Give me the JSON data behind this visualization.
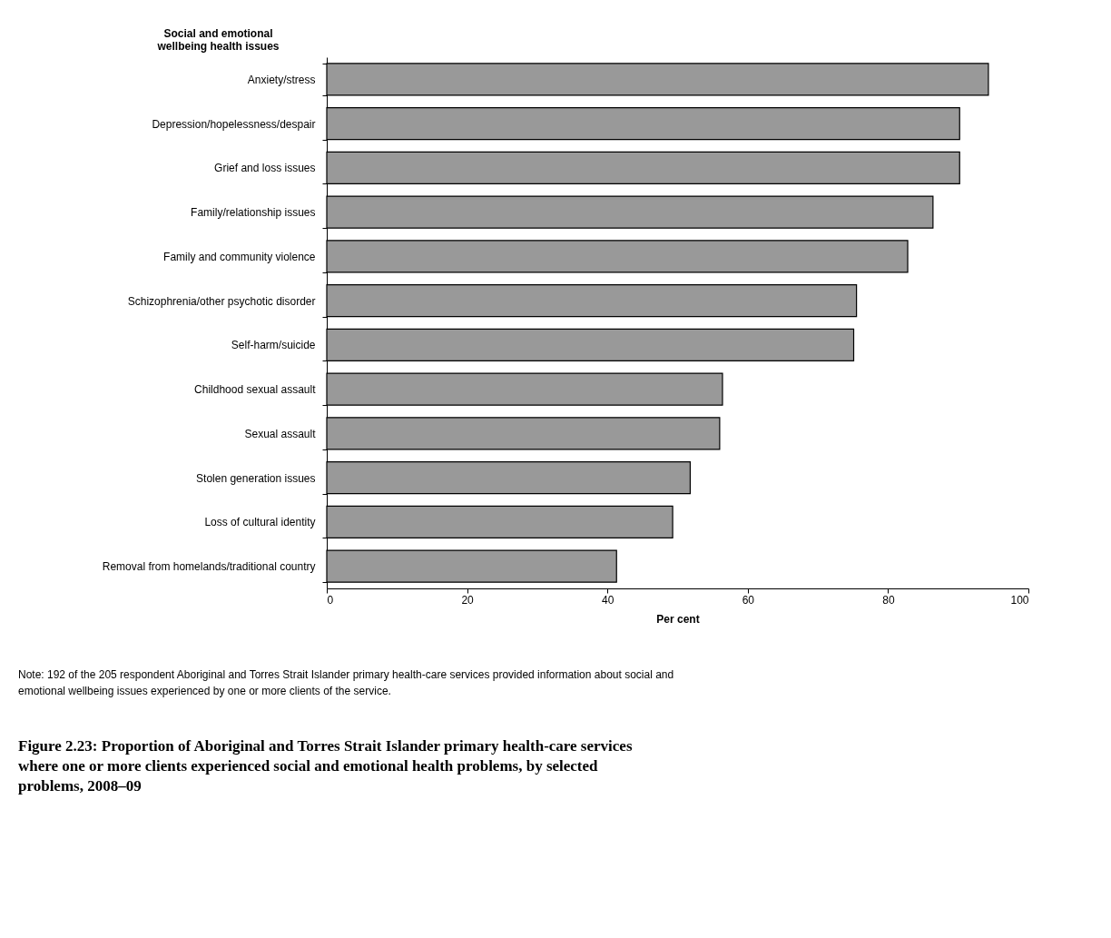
{
  "chart_data": {
    "type": "bar",
    "orientation": "horizontal",
    "title": "Figure 2.23: Proportion of Aboriginal and Torres Strait Islander primary health-care services where one or more clients experienced social and emotional health problems, by selected problems, 2008–09",
    "ylabel": "Social and emotional wellbeing health issues",
    "xlabel": "Per cent",
    "categories": [
      "Anxiety/stress",
      "Depression/hopelessness/despair",
      "Grief and loss issues",
      "Family/relationship issues",
      "Family and community violence",
      "Schizophrenia/other psychotic disorder",
      "Self-harm/suicide",
      "Childhood sexual assault",
      "Sexual assault",
      "Stolen generation issues",
      "Loss of cultural identity",
      "Removal from homelands/traditional country"
    ],
    "values": [
      94.3,
      90.2,
      90.2,
      86.4,
      82.8,
      75.5,
      75.1,
      56.4,
      56.0,
      51.8,
      49.3,
      41.3
    ],
    "color": "#999999",
    "xlim": [
      0,
      100
    ],
    "xticks": [
      0,
      20,
      40,
      60,
      80,
      100
    ],
    "grid": false,
    "annotations": [
      "Note: 192 of the 205 respondent Aboriginal and Torres Strait Islander primary health-care services provided information about social and emotional wellbeing issues experienced by one or more clients of the service."
    ]
  }
}
